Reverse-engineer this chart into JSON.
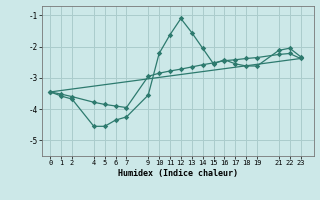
{
  "xlabel": "Humidex (Indice chaleur)",
  "bg_color": "#cce8e8",
  "grid_color": "#aacccc",
  "line_color": "#2d7a6e",
  "xlim": [
    -0.8,
    24.2
  ],
  "ylim": [
    -5.5,
    -0.7
  ],
  "xtick_labels": [
    "0",
    "1",
    "2",
    "4",
    "5",
    "6",
    "7",
    "9",
    "10",
    "11",
    "12",
    "13",
    "14",
    "15",
    "16",
    "17",
    "18",
    "19",
    "21",
    "22",
    "23"
  ],
  "xtick_vals": [
    0,
    1,
    2,
    4,
    5,
    6,
    7,
    9,
    10,
    11,
    12,
    13,
    14,
    15,
    16,
    17,
    18,
    19,
    21,
    22,
    23
  ],
  "ytick_vals": [
    -1,
    -2,
    -3,
    -4,
    -5
  ],
  "line1_x": [
    0,
    1,
    2,
    4,
    5,
    6,
    7,
    9,
    10,
    11,
    12,
    13,
    14,
    15,
    16,
    17,
    18,
    19,
    21,
    22,
    23
  ],
  "line1_y": [
    -3.45,
    -3.58,
    -3.68,
    -4.55,
    -4.55,
    -4.35,
    -4.25,
    -3.55,
    -2.22,
    -1.62,
    -1.1,
    -1.55,
    -2.05,
    -2.55,
    -2.42,
    -2.55,
    -2.62,
    -2.62,
    -2.12,
    -2.05,
    -2.32
  ],
  "line2_x": [
    0,
    1,
    2,
    4,
    5,
    6,
    7,
    9,
    10,
    11,
    12,
    13,
    14,
    15,
    16,
    17,
    18,
    19,
    21,
    22,
    23
  ],
  "line2_y": [
    -3.45,
    -3.52,
    -3.6,
    -3.78,
    -3.85,
    -3.9,
    -3.95,
    -2.95,
    -2.85,
    -2.78,
    -2.72,
    -2.65,
    -2.58,
    -2.52,
    -2.45,
    -2.42,
    -2.38,
    -2.35,
    -2.25,
    -2.22,
    -2.38
  ],
  "line3_x": [
    0,
    23
  ],
  "line3_y": [
    -3.45,
    -2.38
  ]
}
